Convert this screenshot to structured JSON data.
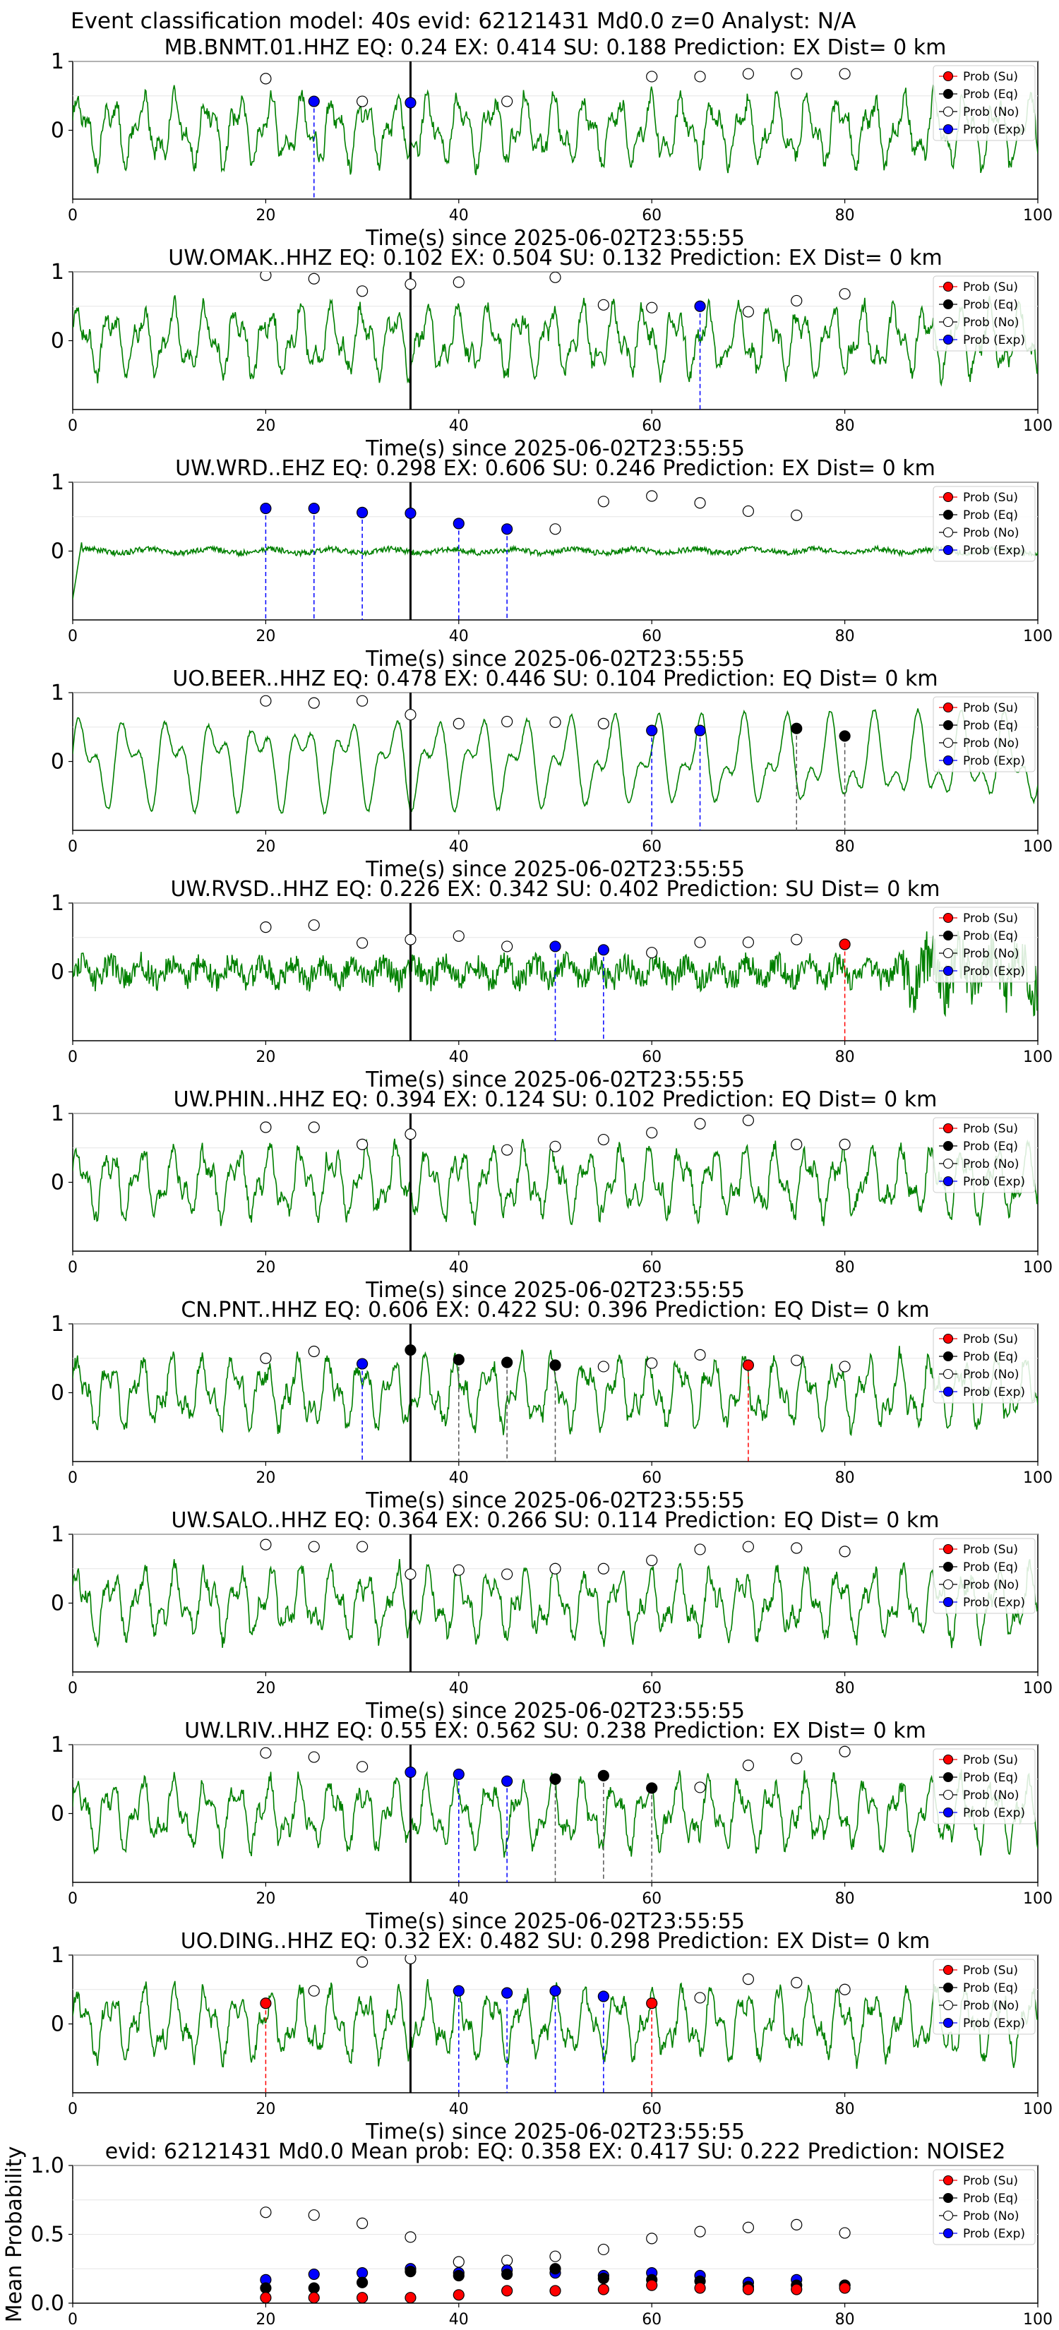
{
  "page_title": "Event classification model: 40s evid: 62121431 Md0.0 z=0 Analyst: N/A",
  "colors": {
    "waveform": "#008000",
    "su": "#ff0000",
    "eq": "#000000",
    "no": "#ffffff",
    "exp": "#0000ff",
    "grid": "#e6e6e6"
  },
  "legend": [
    "Prob (Su)",
    "Prob (Eq)",
    "Prob (No)",
    "Prob (Exp)"
  ],
  "chart_data": [
    {
      "type": "line",
      "title": "MB.BNMT.01.HHZ   EQ: 0.24   EX: 0.414   SU: 0.188    Prediction: EX    Dist= 0 km",
      "xlabel": "Time(s) since 2025-06-02T23:55:55",
      "ylabel": "",
      "xlim": [
        0,
        100
      ],
      "ylim": [
        -1,
        1
      ],
      "xticks": [
        "0",
        "20",
        "40",
        "60",
        "80",
        "100"
      ],
      "yticks": [
        "0",
        "1"
      ],
      "waveform_style": "mixed",
      "event_line_x": 35,
      "points": [
        {
          "x": 20,
          "y": 0.75,
          "c": "no"
        },
        {
          "x": 25,
          "y": 0.42,
          "c": "exp"
        },
        {
          "x": 30,
          "y": 0.42,
          "c": "no"
        },
        {
          "x": 35,
          "y": 0.4,
          "c": "exp"
        },
        {
          "x": 45,
          "y": 0.42,
          "c": "no"
        },
        {
          "x": 60,
          "y": 0.78,
          "c": "no"
        },
        {
          "x": 65,
          "y": 0.78,
          "c": "no"
        },
        {
          "x": 70,
          "y": 0.82,
          "c": "no"
        },
        {
          "x": 75,
          "y": 0.82,
          "c": "no"
        },
        {
          "x": 80,
          "y": 0.82,
          "c": "no"
        }
      ]
    },
    {
      "type": "line",
      "title": "UW.OMAK..HHZ   EQ: 0.102   EX: 0.504   SU: 0.132    Prediction: EX    Dist= 0 km",
      "xlabel": "Time(s) since 2025-06-02T23:55:55",
      "ylabel": "",
      "xlim": [
        0,
        100
      ],
      "ylim": [
        -1,
        1
      ],
      "xticks": [
        "0",
        "20",
        "40",
        "60",
        "80",
        "100"
      ],
      "yticks": [
        "0",
        "1"
      ],
      "waveform_style": "mixed",
      "event_line_x": 35,
      "points": [
        {
          "x": 20,
          "y": 0.95,
          "c": "no"
        },
        {
          "x": 25,
          "y": 0.9,
          "c": "no"
        },
        {
          "x": 30,
          "y": 0.72,
          "c": "no"
        },
        {
          "x": 35,
          "y": 0.82,
          "c": "no"
        },
        {
          "x": 40,
          "y": 0.85,
          "c": "no"
        },
        {
          "x": 50,
          "y": 0.92,
          "c": "no"
        },
        {
          "x": 55,
          "y": 0.52,
          "c": "no"
        },
        {
          "x": 60,
          "y": 0.48,
          "c": "no"
        },
        {
          "x": 65,
          "y": 0.5,
          "c": "exp"
        },
        {
          "x": 70,
          "y": 0.42,
          "c": "no"
        },
        {
          "x": 75,
          "y": 0.58,
          "c": "no"
        },
        {
          "x": 80,
          "y": 0.68,
          "c": "no"
        }
      ]
    },
    {
      "type": "line",
      "title": "UW.WRD..EHZ   EQ: 0.298   EX: 0.606   SU: 0.246    Prediction: EX    Dist= 0 km",
      "xlabel": "Time(s) since 2025-06-02T23:55:55",
      "ylabel": "",
      "xlim": [
        0,
        100
      ],
      "ylim": [
        -1,
        1
      ],
      "xticks": [
        "0",
        "20",
        "40",
        "60",
        "80",
        "100"
      ],
      "yticks": [
        "0",
        "1"
      ],
      "waveform_style": "flat",
      "event_line_x": 35,
      "points": [
        {
          "x": 20,
          "y": 0.62,
          "c": "exp"
        },
        {
          "x": 25,
          "y": 0.62,
          "c": "exp"
        },
        {
          "x": 30,
          "y": 0.56,
          "c": "exp"
        },
        {
          "x": 35,
          "y": 0.55,
          "c": "exp"
        },
        {
          "x": 40,
          "y": 0.4,
          "c": "exp"
        },
        {
          "x": 45,
          "y": 0.32,
          "c": "exp"
        },
        {
          "x": 50,
          "y": 0.32,
          "c": "no"
        },
        {
          "x": 55,
          "y": 0.72,
          "c": "no"
        },
        {
          "x": 60,
          "y": 0.8,
          "c": "no"
        },
        {
          "x": 65,
          "y": 0.7,
          "c": "no"
        },
        {
          "x": 70,
          "y": 0.58,
          "c": "no"
        },
        {
          "x": 75,
          "y": 0.52,
          "c": "no"
        }
      ]
    },
    {
      "type": "line",
      "title": "UO.BEER..HHZ   EQ: 0.478   EX: 0.446   SU: 0.104    Prediction: EQ    Dist= 0 km",
      "xlabel": "Time(s) since 2025-06-02T23:55:55",
      "ylabel": "",
      "xlim": [
        0,
        100
      ],
      "ylim": [
        -1,
        1
      ],
      "xticks": [
        "0",
        "20",
        "40",
        "60",
        "80",
        "100"
      ],
      "yticks": [
        "0",
        "1"
      ],
      "waveform_style": "smooth",
      "event_line_x": 35,
      "points": [
        {
          "x": 20,
          "y": 0.88,
          "c": "no"
        },
        {
          "x": 25,
          "y": 0.85,
          "c": "no"
        },
        {
          "x": 30,
          "y": 0.88,
          "c": "no"
        },
        {
          "x": 35,
          "y": 0.68,
          "c": "no"
        },
        {
          "x": 40,
          "y": 0.55,
          "c": "no"
        },
        {
          "x": 45,
          "y": 0.58,
          "c": "no"
        },
        {
          "x": 50,
          "y": 0.57,
          "c": "no"
        },
        {
          "x": 55,
          "y": 0.55,
          "c": "no"
        },
        {
          "x": 60,
          "y": 0.45,
          "c": "exp"
        },
        {
          "x": 65,
          "y": 0.45,
          "c": "exp"
        },
        {
          "x": 75,
          "y": 0.48,
          "c": "eq"
        },
        {
          "x": 80,
          "y": 0.37,
          "c": "eq"
        }
      ]
    },
    {
      "type": "line",
      "title": "UW.RVSD..HHZ   EQ: 0.226   EX: 0.342   SU: 0.402    Prediction: SU    Dist= 0 km",
      "xlabel": "Time(s) since 2025-06-02T23:55:55",
      "ylabel": "",
      "xlim": [
        0,
        100
      ],
      "ylim": [
        -1,
        1
      ],
      "xticks": [
        "0",
        "20",
        "40",
        "60",
        "80",
        "100"
      ],
      "yticks": [
        "0",
        "1"
      ],
      "waveform_style": "noise",
      "event_line_x": 35,
      "points": [
        {
          "x": 20,
          "y": 0.65,
          "c": "no"
        },
        {
          "x": 25,
          "y": 0.68,
          "c": "no"
        },
        {
          "x": 30,
          "y": 0.42,
          "c": "no"
        },
        {
          "x": 35,
          "y": 0.47,
          "c": "no"
        },
        {
          "x": 40,
          "y": 0.52,
          "c": "no"
        },
        {
          "x": 45,
          "y": 0.37,
          "c": "no"
        },
        {
          "x": 50,
          "y": 0.37,
          "c": "exp"
        },
        {
          "x": 55,
          "y": 0.32,
          "c": "exp"
        },
        {
          "x": 60,
          "y": 0.28,
          "c": "no"
        },
        {
          "x": 65,
          "y": 0.43,
          "c": "no"
        },
        {
          "x": 70,
          "y": 0.43,
          "c": "no"
        },
        {
          "x": 75,
          "y": 0.47,
          "c": "no"
        },
        {
          "x": 80,
          "y": 0.4,
          "c": "su"
        }
      ]
    },
    {
      "type": "line",
      "title": "UW.PHIN..HHZ   EQ: 0.394   EX: 0.124   SU: 0.102    Prediction: EQ    Dist= 0 km",
      "xlabel": "Time(s) since 2025-06-02T23:55:55",
      "ylabel": "",
      "xlim": [
        0,
        100
      ],
      "ylim": [
        -1,
        1
      ],
      "xticks": [
        "0",
        "20",
        "40",
        "60",
        "80",
        "100"
      ],
      "yticks": [
        "0",
        "1"
      ],
      "waveform_style": "mixed",
      "event_line_x": 35,
      "points": [
        {
          "x": 20,
          "y": 0.8,
          "c": "no"
        },
        {
          "x": 25,
          "y": 0.8,
          "c": "no"
        },
        {
          "x": 30,
          "y": 0.55,
          "c": "no"
        },
        {
          "x": 35,
          "y": 0.7,
          "c": "no"
        },
        {
          "x": 45,
          "y": 0.47,
          "c": "no"
        },
        {
          "x": 50,
          "y": 0.52,
          "c": "no"
        },
        {
          "x": 55,
          "y": 0.62,
          "c": "no"
        },
        {
          "x": 60,
          "y": 0.72,
          "c": "no"
        },
        {
          "x": 65,
          "y": 0.85,
          "c": "no"
        },
        {
          "x": 70,
          "y": 0.9,
          "c": "no"
        },
        {
          "x": 75,
          "y": 0.55,
          "c": "no"
        },
        {
          "x": 80,
          "y": 0.55,
          "c": "no"
        }
      ]
    },
    {
      "type": "line",
      "title": "CN.PNT..HHZ   EQ: 0.606   EX: 0.422   SU: 0.396    Prediction: EQ    Dist= 0 km",
      "xlabel": "Time(s) since 2025-06-02T23:55:55",
      "ylabel": "",
      "xlim": [
        0,
        100
      ],
      "ylim": [
        -1,
        1
      ],
      "xticks": [
        "0",
        "20",
        "40",
        "60",
        "80",
        "100"
      ],
      "yticks": [
        "0",
        "1"
      ],
      "waveform_style": "mixed",
      "event_line_x": 35,
      "points": [
        {
          "x": 20,
          "y": 0.5,
          "c": "no"
        },
        {
          "x": 25,
          "y": 0.6,
          "c": "no"
        },
        {
          "x": 30,
          "y": 0.42,
          "c": "exp"
        },
        {
          "x": 35,
          "y": 0.62,
          "c": "eq"
        },
        {
          "x": 40,
          "y": 0.48,
          "c": "eq"
        },
        {
          "x": 45,
          "y": 0.44,
          "c": "eq"
        },
        {
          "x": 50,
          "y": 0.4,
          "c": "eq"
        },
        {
          "x": 55,
          "y": 0.38,
          "c": "no"
        },
        {
          "x": 60,
          "y": 0.43,
          "c": "no"
        },
        {
          "x": 65,
          "y": 0.55,
          "c": "no"
        },
        {
          "x": 70,
          "y": 0.4,
          "c": "su"
        },
        {
          "x": 75,
          "y": 0.47,
          "c": "no"
        },
        {
          "x": 80,
          "y": 0.38,
          "c": "no"
        }
      ]
    },
    {
      "type": "line",
      "title": "UW.SALO..HHZ   EQ: 0.364   EX: 0.266   SU: 0.114    Prediction: EQ    Dist= 0 km",
      "xlabel": "Time(s) since 2025-06-02T23:55:55",
      "ylabel": "",
      "xlim": [
        0,
        100
      ],
      "ylim": [
        -1,
        1
      ],
      "xticks": [
        "0",
        "20",
        "40",
        "60",
        "80",
        "100"
      ],
      "yticks": [
        "0",
        "1"
      ],
      "waveform_style": "mixed",
      "event_line_x": 35,
      "points": [
        {
          "x": 20,
          "y": 0.85,
          "c": "no"
        },
        {
          "x": 25,
          "y": 0.82,
          "c": "no"
        },
        {
          "x": 30,
          "y": 0.82,
          "c": "no"
        },
        {
          "x": 35,
          "y": 0.42,
          "c": "no"
        },
        {
          "x": 40,
          "y": 0.48,
          "c": "no"
        },
        {
          "x": 45,
          "y": 0.42,
          "c": "no"
        },
        {
          "x": 50,
          "y": 0.5,
          "c": "no"
        },
        {
          "x": 55,
          "y": 0.5,
          "c": "no"
        },
        {
          "x": 60,
          "y": 0.62,
          "c": "no"
        },
        {
          "x": 65,
          "y": 0.78,
          "c": "no"
        },
        {
          "x": 70,
          "y": 0.82,
          "c": "no"
        },
        {
          "x": 75,
          "y": 0.8,
          "c": "no"
        },
        {
          "x": 80,
          "y": 0.75,
          "c": "no"
        }
      ]
    },
    {
      "type": "line",
      "title": "UW.LRIV..HHZ   EQ: 0.55   EX: 0.562   SU: 0.238    Prediction: EX    Dist= 0 km",
      "xlabel": "Time(s) since 2025-06-02T23:55:55",
      "ylabel": "",
      "xlim": [
        0,
        100
      ],
      "ylim": [
        -1,
        1
      ],
      "xticks": [
        "0",
        "20",
        "40",
        "60",
        "80",
        "100"
      ],
      "yticks": [
        "0",
        "1"
      ],
      "waveform_style": "mixed",
      "event_line_x": 35,
      "points": [
        {
          "x": 20,
          "y": 0.88,
          "c": "no"
        },
        {
          "x": 25,
          "y": 0.82,
          "c": "no"
        },
        {
          "x": 30,
          "y": 0.68,
          "c": "no"
        },
        {
          "x": 35,
          "y": 0.6,
          "c": "exp"
        },
        {
          "x": 40,
          "y": 0.57,
          "c": "exp"
        },
        {
          "x": 45,
          "y": 0.47,
          "c": "exp"
        },
        {
          "x": 50,
          "y": 0.5,
          "c": "eq"
        },
        {
          "x": 55,
          "y": 0.55,
          "c": "eq"
        },
        {
          "x": 60,
          "y": 0.37,
          "c": "eq"
        },
        {
          "x": 65,
          "y": 0.38,
          "c": "no"
        },
        {
          "x": 70,
          "y": 0.7,
          "c": "no"
        },
        {
          "x": 75,
          "y": 0.8,
          "c": "no"
        },
        {
          "x": 80,
          "y": 0.9,
          "c": "no"
        }
      ]
    },
    {
      "type": "line",
      "title": "UO.DING..HHZ   EQ: 0.32   EX: 0.482   SU: 0.298    Prediction: EX    Dist= 0 km",
      "xlabel": "Time(s) since 2025-06-02T23:55:55",
      "ylabel": "",
      "xlim": [
        0,
        100
      ],
      "ylim": [
        -1,
        1
      ],
      "xticks": [
        "0",
        "20",
        "40",
        "60",
        "80",
        "100"
      ],
      "yticks": [
        "0",
        "1"
      ],
      "waveform_style": "mixed",
      "event_line_x": 35,
      "points": [
        {
          "x": 20,
          "y": 0.3,
          "c": "su"
        },
        {
          "x": 25,
          "y": 0.48,
          "c": "no"
        },
        {
          "x": 30,
          "y": 0.9,
          "c": "no"
        },
        {
          "x": 35,
          "y": 0.95,
          "c": "no"
        },
        {
          "x": 40,
          "y": 0.48,
          "c": "exp"
        },
        {
          "x": 45,
          "y": 0.45,
          "c": "exp"
        },
        {
          "x": 50,
          "y": 0.48,
          "c": "exp"
        },
        {
          "x": 55,
          "y": 0.4,
          "c": "exp"
        },
        {
          "x": 60,
          "y": 0.3,
          "c": "su"
        },
        {
          "x": 65,
          "y": 0.38,
          "c": "no"
        },
        {
          "x": 70,
          "y": 0.65,
          "c": "no"
        },
        {
          "x": 75,
          "y": 0.6,
          "c": "no"
        },
        {
          "x": 80,
          "y": 0.5,
          "c": "no"
        }
      ]
    },
    {
      "type": "scatter",
      "title": "evid: 62121431   Md0.0   Mean prob:   EQ: 0.358   EX: 0.417   SU: 0.222   Prediction: NOISE2",
      "xlabel": "",
      "ylabel": "Mean Probability",
      "xlim": [
        0,
        100
      ],
      "ylim": [
        0,
        1
      ],
      "xticks": [
        "0",
        "20",
        "40",
        "60",
        "80",
        "100"
      ],
      "yticks": [
        "0.0",
        "0.5",
        "1.0"
      ],
      "series": [
        {
          "name": "Prob (No)",
          "c": "no",
          "x": [
            20,
            25,
            30,
            35,
            40,
            45,
            50,
            55,
            60,
            65,
            70,
            75,
            80
          ],
          "y": [
            0.66,
            0.64,
            0.58,
            0.48,
            0.3,
            0.31,
            0.34,
            0.39,
            0.47,
            0.52,
            0.55,
            0.57,
            0.51
          ]
        },
        {
          "name": "Prob (Exp)",
          "c": "exp",
          "x": [
            20,
            25,
            30,
            35,
            40,
            45,
            50,
            55,
            60,
            65,
            70,
            75,
            80
          ],
          "y": [
            0.17,
            0.21,
            0.22,
            0.25,
            0.22,
            0.24,
            0.22,
            0.2,
            0.22,
            0.2,
            0.15,
            0.17,
            0.13
          ]
        },
        {
          "name": "Prob (Eq)",
          "c": "eq",
          "x": [
            20,
            25,
            30,
            35,
            40,
            45,
            50,
            55,
            60,
            65,
            70,
            75,
            80
          ],
          "y": [
            0.11,
            0.11,
            0.15,
            0.23,
            0.2,
            0.21,
            0.25,
            0.18,
            0.17,
            0.16,
            0.12,
            0.13,
            0.13
          ]
        },
        {
          "name": "Prob (Su)",
          "c": "su",
          "x": [
            20,
            25,
            30,
            35,
            40,
            45,
            50,
            55,
            60,
            65,
            70,
            75,
            80
          ],
          "y": [
            0.04,
            0.04,
            0.04,
            0.04,
            0.06,
            0.09,
            0.09,
            0.1,
            0.13,
            0.11,
            0.1,
            0.1,
            0.11
          ]
        }
      ]
    }
  ]
}
